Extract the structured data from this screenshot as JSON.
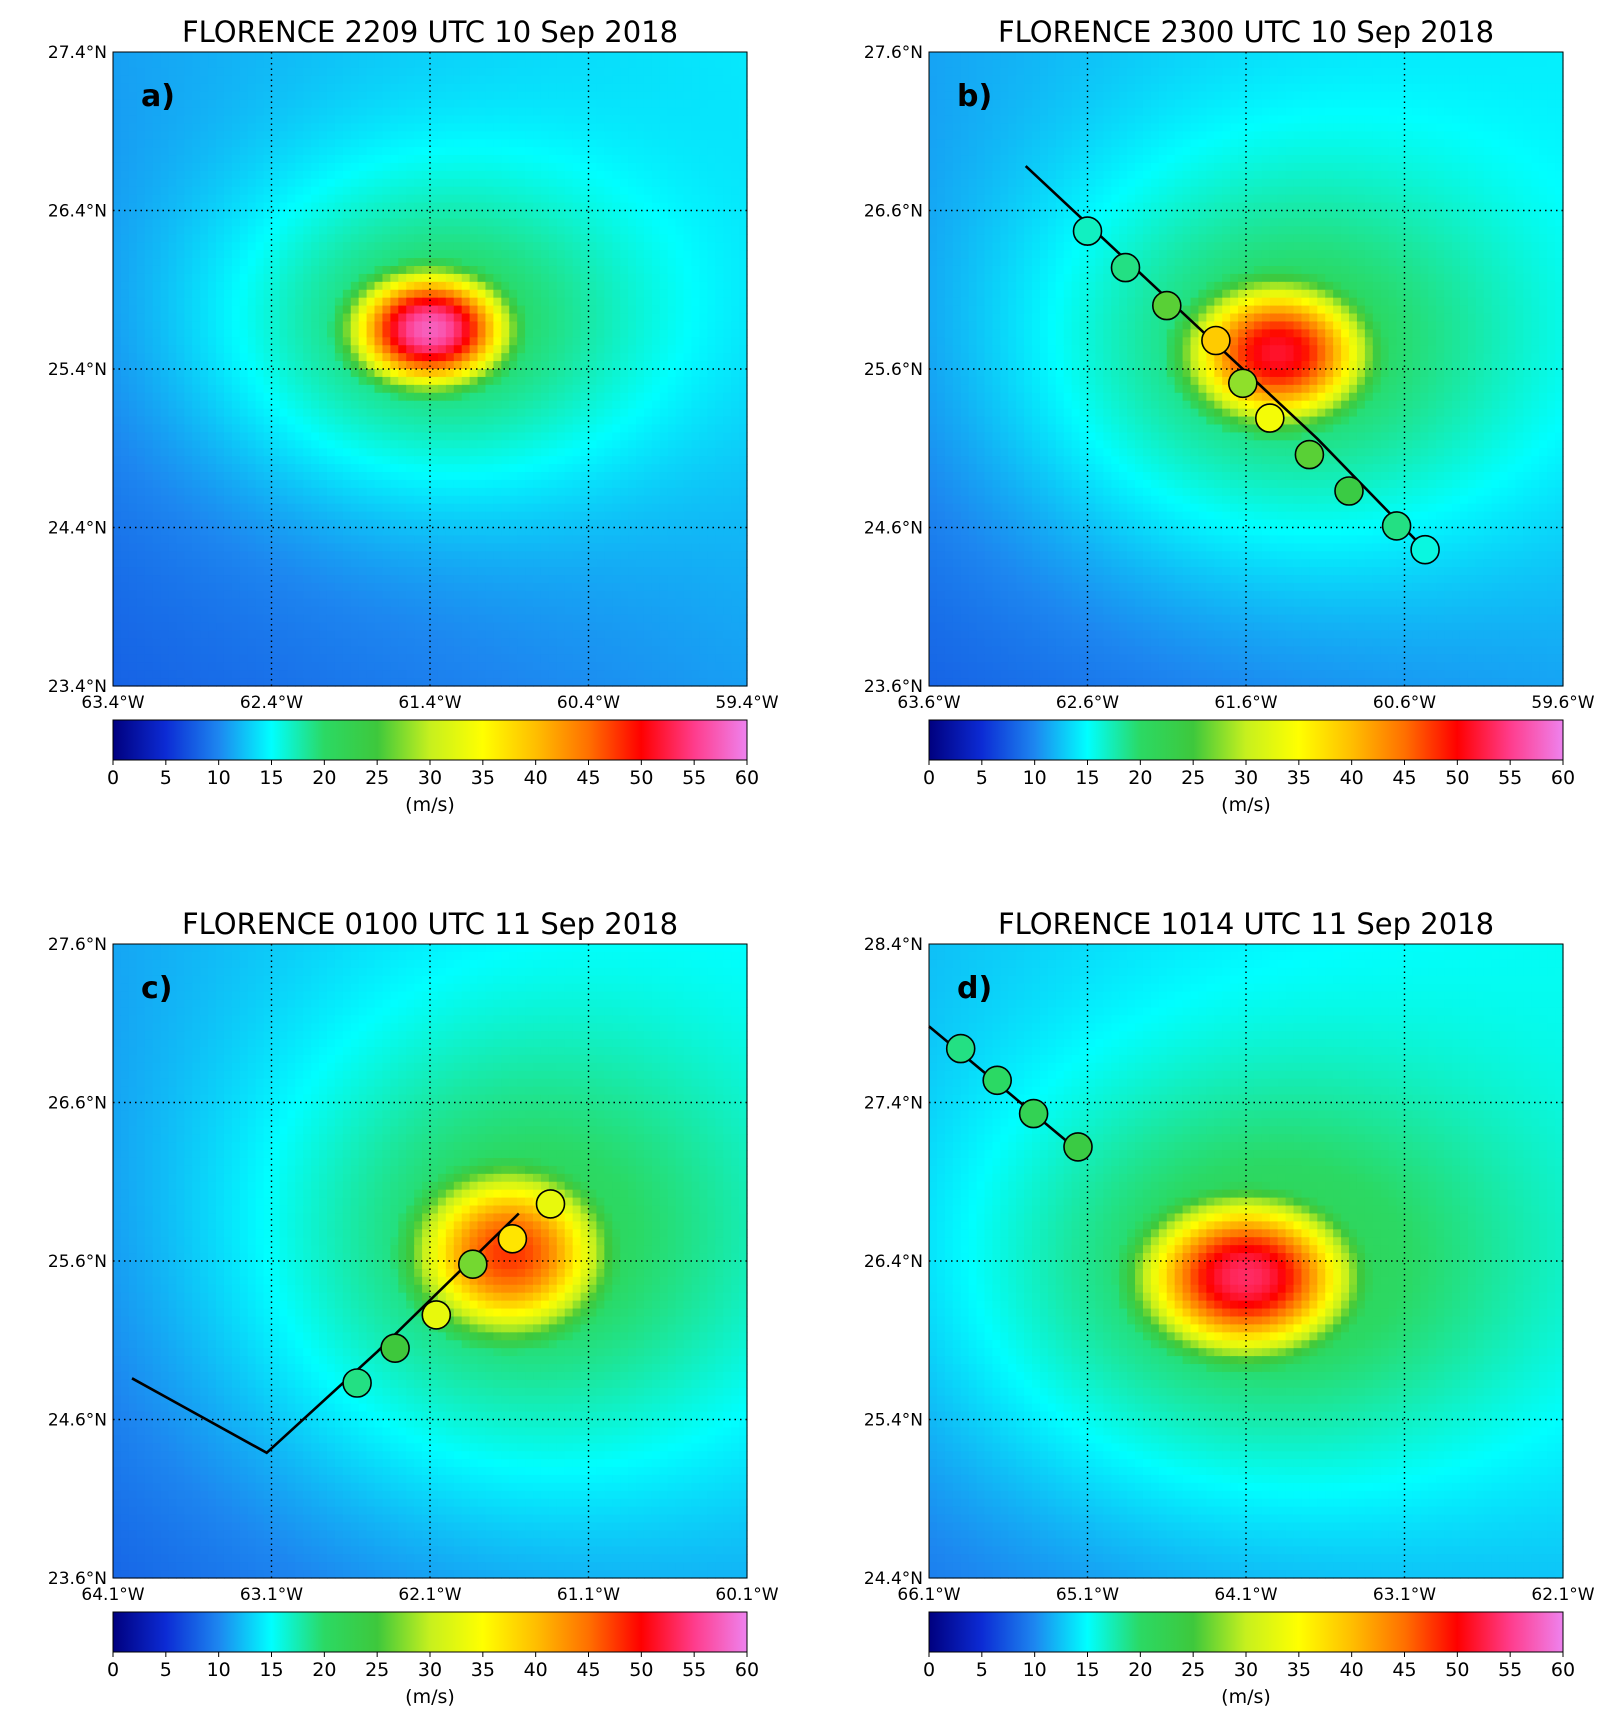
{
  "chart_data": [
    {
      "type": "heatmap",
      "panel_label": "a)",
      "title": "FLORENCE 2209 UTC 10 Sep 2018",
      "xticklabels": [
        "63.4°W",
        "62.4°W",
        "61.4°W",
        "60.4°W",
        "59.4°W"
      ],
      "yticklabels": [
        "27.4°N",
        "26.4°N",
        "25.4°N",
        "24.4°N",
        "23.4°N"
      ],
      "lon_range": [
        -63.4,
        -59.4
      ],
      "lat_range": [
        23.4,
        27.4
      ],
      "grid": true,
      "colorbar": {
        "ticks": [
          "0",
          "5",
          "10",
          "15",
          "20",
          "25",
          "30",
          "35",
          "40",
          "45",
          "50",
          "55",
          "60"
        ],
        "label": "(m/s)",
        "range": [
          0,
          60
        ]
      },
      "field": {
        "center_lon": -61.4,
        "center_lat": 25.65,
        "peak": 54,
        "rmw_x": 0.55,
        "rmw_y": 0.4,
        "background": 14
      },
      "track": [],
      "obs": []
    },
    {
      "type": "heatmap",
      "panel_label": "b)",
      "title": "FLORENCE 2300 UTC 10 Sep 2018",
      "xticklabels": [
        "63.6°W",
        "62.6°W",
        "61.6°W",
        "60.6°W",
        "59.6°W"
      ],
      "yticklabels": [
        "27.6°N",
        "26.6°N",
        "25.6°N",
        "24.6°N",
        "23.6°N"
      ],
      "lon_range": [
        -63.6,
        -59.6
      ],
      "lat_range": [
        23.6,
        27.6
      ],
      "grid": true,
      "colorbar": {
        "ticks": [
          "0",
          "5",
          "10",
          "15",
          "20",
          "25",
          "30",
          "35",
          "40",
          "45",
          "50",
          "55",
          "60"
        ],
        "label": "(m/s)",
        "range": [
          0,
          60
        ]
      },
      "field": {
        "center_lon": -61.4,
        "center_lat": 25.7,
        "peak": 48,
        "rmw_x": 0.65,
        "rmw_y": 0.5,
        "background": 14
      },
      "track": [
        [
          -62.99,
          26.88
        ],
        [
          -61.15,
          25.16
        ],
        [
          -60.45,
          24.44
        ]
      ],
      "obs": [
        {
          "lon": -62.6,
          "lat": 26.47,
          "value": 17
        },
        {
          "lon": -62.36,
          "lat": 26.24,
          "value": 19
        },
        {
          "lon": -62.1,
          "lat": 26.0,
          "value": 26
        },
        {
          "lon": -61.79,
          "lat": 25.78,
          "value": 39
        },
        {
          "lon": -61.62,
          "lat": 25.51,
          "value": 28
        },
        {
          "lon": -61.45,
          "lat": 25.29,
          "value": 34
        },
        {
          "lon": -61.2,
          "lat": 25.06,
          "value": 26
        },
        {
          "lon": -60.95,
          "lat": 24.83,
          "value": 24
        },
        {
          "lon": -60.65,
          "lat": 24.61,
          "value": 19
        },
        {
          "lon": -60.47,
          "lat": 24.46,
          "value": 16
        }
      ]
    },
    {
      "type": "heatmap",
      "panel_label": "c)",
      "title": "FLORENCE 0100 UTC 11 Sep 2018",
      "xticklabels": [
        "64.1°W",
        "63.1°W",
        "62.1°W",
        "61.1°W",
        "60.1°W"
      ],
      "yticklabels": [
        "27.6°N",
        "26.6°N",
        "25.6°N",
        "24.6°N",
        "23.6°N"
      ],
      "lon_range": [
        -64.1,
        -60.1
      ],
      "lat_range": [
        23.6,
        27.6
      ],
      "grid": true,
      "colorbar": {
        "ticks": [
          "0",
          "5",
          "10",
          "15",
          "20",
          "25",
          "30",
          "35",
          "40",
          "45",
          "50",
          "55",
          "60"
        ],
        "label": "(m/s)",
        "range": [
          0,
          60
        ]
      },
      "field": {
        "center_lon": -61.6,
        "center_lat": 25.65,
        "peak": 44,
        "rmw_x": 0.7,
        "rmw_y": 0.6,
        "background": 14
      },
      "track": [
        [
          -63.98,
          24.86
        ],
        [
          -63.13,
          24.39
        ],
        [
          -62.43,
          25.03
        ],
        [
          -61.54,
          25.9
        ]
      ],
      "obs": [
        {
          "lon": -62.56,
          "lat": 24.83,
          "value": 19
        },
        {
          "lon": -62.32,
          "lat": 25.05,
          "value": 25
        },
        {
          "lon": -62.06,
          "lat": 25.26,
          "value": 33
        },
        {
          "lon": -61.83,
          "lat": 25.58,
          "value": 27
        },
        {
          "lon": -61.58,
          "lat": 25.74,
          "value": 37
        },
        {
          "lon": -61.34,
          "lat": 25.96,
          "value": 33
        }
      ]
    },
    {
      "type": "heatmap",
      "panel_label": "d)",
      "title": "FLORENCE 1014 UTC 11 Sep 2018",
      "xticklabels": [
        "66.1°W",
        "65.1°W",
        "64.1°W",
        "63.1°W",
        "62.1°W"
      ],
      "yticklabels": [
        "28.4°N",
        "27.4°N",
        "26.4°N",
        "25.4°N",
        "24.4°N"
      ],
      "lon_range": [
        -66.1,
        -62.1
      ],
      "lat_range": [
        24.4,
        28.4
      ],
      "grid": true,
      "colorbar": {
        "ticks": [
          "0",
          "5",
          "10",
          "15",
          "20",
          "25",
          "30",
          "35",
          "40",
          "45",
          "50",
          "55",
          "60"
        ],
        "label": "(m/s)",
        "range": [
          0,
          60
        ]
      },
      "field": {
        "center_lon": -64.1,
        "center_lat": 26.3,
        "peak": 50,
        "rmw_x": 0.75,
        "rmw_y": 0.55,
        "background": 15
      },
      "track": [
        [
          -66.1,
          27.88
        ],
        [
          -65.14,
          27.08
        ]
      ],
      "obs": [
        {
          "lon": -65.9,
          "lat": 27.74,
          "value": 19
        },
        {
          "lon": -65.67,
          "lat": 27.54,
          "value": 20
        },
        {
          "lon": -65.44,
          "lat": 27.33,
          "value": 22
        },
        {
          "lon": -65.16,
          "lat": 27.12,
          "value": 24
        }
      ]
    }
  ]
}
